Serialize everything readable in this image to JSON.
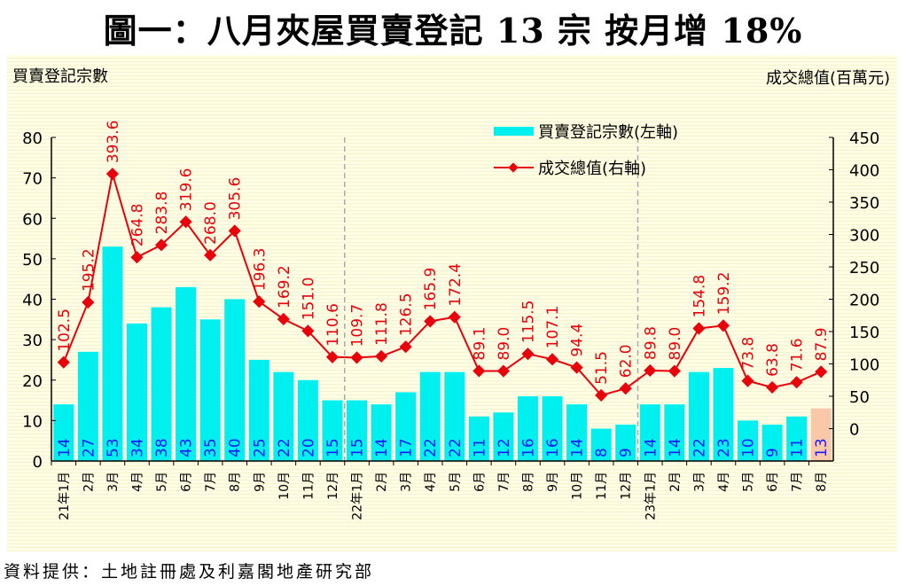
{
  "title": "圖一：八月夾屋買賣登記 13 宗  按月增 18%",
  "source": "資料提供：土地註冊處及利嘉閣地產研究部",
  "chart_data": {
    "type": "bar+line",
    "left_axis_label": "買賣登記宗數",
    "right_axis_label": "成交總值(百萬元)",
    "left_ylim": [
      0,
      80
    ],
    "left_ticks": [
      "0",
      "10",
      "20",
      "30",
      "40",
      "50",
      "60",
      "70",
      "80"
    ],
    "right_ylim": [
      -50,
      450
    ],
    "right_ticks": [
      "0",
      "50",
      "100",
      "150",
      "200",
      "250",
      "300",
      "350",
      "400",
      "450"
    ],
    "legend": [
      {
        "name": "買賣登記宗數(左軸)",
        "color": "#00f0f0"
      },
      {
        "name": "成交總值(右軸)",
        "color": "#e8000a"
      }
    ],
    "legend_position": "top-center",
    "categories": [
      "21年1月",
      "2月",
      "3月",
      "4月",
      "5月",
      "6月",
      "7月",
      "8月",
      "9月",
      "10月",
      "11月",
      "12月",
      "22年1月",
      "2月",
      "3月",
      "4月",
      "5月",
      "6月",
      "7月",
      "8月",
      "9月",
      "10月",
      "11月",
      "12月",
      "23年1月",
      "2月",
      "3月",
      "4月",
      "5月",
      "6月",
      "7月",
      "8月"
    ],
    "series": [
      {
        "name": "買賣登記宗數(左軸)",
        "axis": "left",
        "type": "bar",
        "values": [
          14,
          27,
          53,
          34,
          38,
          43,
          35,
          40,
          25,
          22,
          20,
          15,
          15,
          14,
          17,
          22,
          22,
          11,
          12,
          16,
          16,
          14,
          8,
          9,
          14,
          14,
          22,
          23,
          10,
          9,
          11,
          13
        ]
      },
      {
        "name": "成交總值(右軸)",
        "axis": "right",
        "type": "line",
        "values": [
          102.5,
          195.2,
          393.6,
          264.8,
          283.8,
          319.6,
          268.0,
          305.6,
          196.3,
          169.2,
          151.0,
          110.6,
          109.7,
          111.8,
          126.5,
          165.9,
          172.4,
          89.1,
          89.0,
          115.5,
          107.1,
          94.4,
          51.5,
          62.0,
          89.8,
          89.0,
          154.8,
          159.2,
          73.8,
          63.8,
          71.6,
          87.9
        ]
      }
    ],
    "year_dividers_before": [
      "22年1月",
      "23年1月"
    ],
    "colors": {
      "bar": "#00f0f0",
      "highlight_bar": "#f8c8a8",
      "line": "#e8000a",
      "bar_label": "#1a1aff"
    }
  }
}
